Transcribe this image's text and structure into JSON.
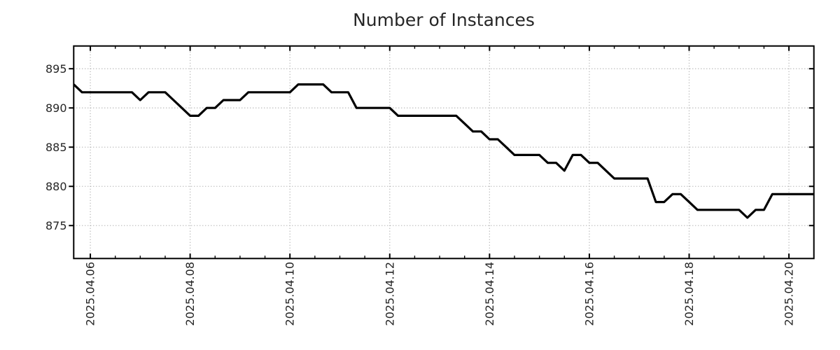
{
  "title": "Number of Instances",
  "chart_data": {
    "type": "line",
    "title": "Number of Instances",
    "xlabel": "",
    "ylabel": "",
    "legend": "none",
    "grid": "dotted major gridlines",
    "x_step_hours": 4,
    "x": [
      "2025-04-05 16:00",
      "2025-04-05 20:00",
      "2025-04-06 00:00",
      "2025-04-06 04:00",
      "2025-04-06 08:00",
      "2025-04-06 12:00",
      "2025-04-06 16:00",
      "2025-04-06 20:00",
      "2025-04-07 00:00",
      "2025-04-07 04:00",
      "2025-04-07 08:00",
      "2025-04-07 12:00",
      "2025-04-07 16:00",
      "2025-04-07 20:00",
      "2025-04-08 00:00",
      "2025-04-08 04:00",
      "2025-04-08 08:00",
      "2025-04-08 12:00",
      "2025-04-08 16:00",
      "2025-04-08 20:00",
      "2025-04-09 00:00",
      "2025-04-09 04:00",
      "2025-04-09 08:00",
      "2025-04-09 12:00",
      "2025-04-09 16:00",
      "2025-04-09 20:00",
      "2025-04-10 00:00",
      "2025-04-10 04:00",
      "2025-04-10 08:00",
      "2025-04-10 12:00",
      "2025-04-10 16:00",
      "2025-04-10 20:00",
      "2025-04-11 00:00",
      "2025-04-11 04:00",
      "2025-04-11 08:00",
      "2025-04-11 12:00",
      "2025-04-11 16:00",
      "2025-04-11 20:00",
      "2025-04-12 00:00",
      "2025-04-12 04:00",
      "2025-04-12 08:00",
      "2025-04-12 12:00",
      "2025-04-12 16:00",
      "2025-04-12 20:00",
      "2025-04-13 00:00",
      "2025-04-13 04:00",
      "2025-04-13 08:00",
      "2025-04-13 12:00",
      "2025-04-13 16:00",
      "2025-04-13 20:00",
      "2025-04-14 00:00",
      "2025-04-14 04:00",
      "2025-04-14 08:00",
      "2025-04-14 12:00",
      "2025-04-14 16:00",
      "2025-04-14 20:00",
      "2025-04-15 00:00",
      "2025-04-15 04:00",
      "2025-04-15 08:00",
      "2025-04-15 12:00",
      "2025-04-15 16:00",
      "2025-04-15 20:00",
      "2025-04-16 00:00",
      "2025-04-16 04:00",
      "2025-04-16 08:00",
      "2025-04-16 12:00",
      "2025-04-16 16:00",
      "2025-04-16 20:00",
      "2025-04-17 00:00",
      "2025-04-17 04:00",
      "2025-04-17 08:00",
      "2025-04-17 12:00",
      "2025-04-17 16:00",
      "2025-04-17 20:00",
      "2025-04-18 00:00",
      "2025-04-18 04:00",
      "2025-04-18 08:00",
      "2025-04-18 12:00",
      "2025-04-18 16:00",
      "2025-04-18 20:00",
      "2025-04-19 00:00",
      "2025-04-19 04:00",
      "2025-04-19 08:00",
      "2025-04-19 12:00",
      "2025-04-19 16:00",
      "2025-04-19 20:00",
      "2025-04-20 00:00",
      "2025-04-20 04:00",
      "2025-04-20 08:00",
      "2025-04-20 12:00"
    ],
    "values": [
      893,
      892,
      892,
      892,
      892,
      892,
      892,
      892,
      891,
      892,
      892,
      892,
      891,
      890,
      889,
      889,
      890,
      890,
      891,
      891,
      891,
      892,
      892,
      892,
      892,
      892,
      892,
      893,
      893,
      893,
      893,
      892,
      892,
      892,
      890,
      890,
      890,
      890,
      890,
      889,
      889,
      889,
      889,
      889,
      889,
      889,
      889,
      888,
      887,
      887,
      886,
      886,
      885,
      884,
      884,
      884,
      884,
      883,
      883,
      882,
      884,
      884,
      883,
      883,
      882,
      881,
      881,
      881,
      881,
      881,
      878,
      878,
      879,
      879,
      878,
      877,
      877,
      877,
      877,
      877,
      877,
      876,
      877,
      877,
      879,
      879,
      879,
      879,
      879,
      879
    ],
    "yticks": [
      875,
      880,
      885,
      890,
      895
    ],
    "ylim": [
      870.8,
      897.9
    ],
    "xtick_labels": [
      "2025.04.06",
      "2025.04.08",
      "2025.04.10",
      "2025.04.12",
      "2025.04.14",
      "2025.04.16",
      "2025.04.18",
      "2025.04.20"
    ],
    "minor_xtick_interval_hours": 12,
    "colors": {
      "line": "#000000",
      "grid": "#a8a8a8",
      "axis": "#000000",
      "text": "#262626"
    }
  }
}
